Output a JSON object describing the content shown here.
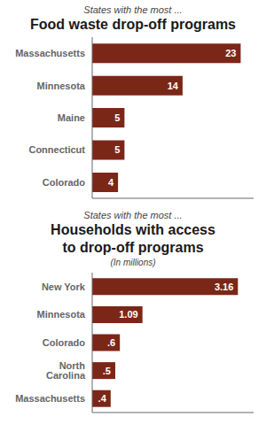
{
  "chart_data": [
    {
      "type": "bar",
      "orientation": "horizontal",
      "subtitle": "States with the most ...",
      "title": "Food waste drop-off programs",
      "categories": [
        "Massachusetts",
        "Minnesota",
        "Maine",
        "Connecticut",
        "Colorado"
      ],
      "values": [
        23,
        14,
        5,
        5,
        4
      ],
      "color": "#7b2718",
      "xlim": [
        0,
        25
      ],
      "data_labels": true,
      "tick_labels": "y",
      "grid": false
    },
    {
      "type": "bar",
      "orientation": "horizontal",
      "subtitle": "States with the most ...",
      "title": "Households with access\nto drop-off programs",
      "annotation": "(In millions)",
      "categories": [
        "New York",
        "Minnesota",
        "Colorado",
        "North Carolina",
        "Massachusetts"
      ],
      "values": [
        3.16,
        1.09,
        0.6,
        0.5,
        0.4
      ],
      "value_labels": [
        "3.16",
        "1.09",
        ".6",
        ".5",
        ".4"
      ],
      "color": "#7b2718",
      "xlim": [
        0,
        3.5
      ],
      "data_labels": true,
      "tick_labels": "y",
      "grid": false
    }
  ]
}
